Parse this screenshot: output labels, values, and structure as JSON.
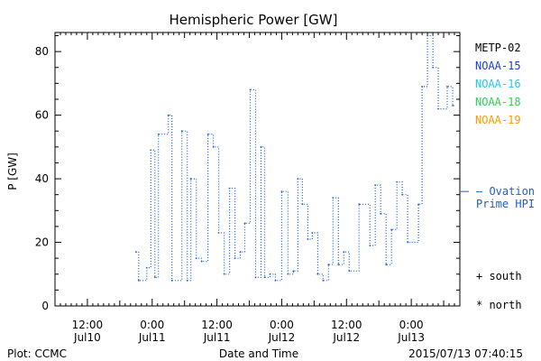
{
  "chart_data": {
    "type": "line",
    "title": "Hemispheric Power [GW]",
    "xlabel": "Date and Time",
    "ylabel": "P [GW]",
    "ylim": [
      0,
      86
    ],
    "yticks": [
      0,
      20,
      40,
      60,
      80
    ],
    "xlim": [
      "2015-07-10 06:00",
      "2015-07-13 09:00"
    ],
    "xticks": [
      {
        "time": "2015-07-10 12:00",
        "line1": "12:00",
        "line2": "Jul10"
      },
      {
        "time": "2015-07-11 00:00",
        "line1": "0:00",
        "line2": "Jul11"
      },
      {
        "time": "2015-07-11 12:00",
        "line1": "12:00",
        "line2": "Jul11"
      },
      {
        "time": "2015-07-12 00:00",
        "line1": "0:00",
        "line2": "Jul12"
      },
      {
        "time": "2015-07-12 12:00",
        "line1": "12:00",
        "line2": "Jul12"
      },
      {
        "time": "2015-07-13 00:00",
        "line1": "0:00",
        "line2": "Jul13"
      }
    ],
    "legend": {
      "placement": "right",
      "entries": [
        {
          "name": "METP-02",
          "color": "#000000"
        },
        {
          "name": "NOAA-15",
          "color": "#1a3fd1"
        },
        {
          "name": "NOAA-16",
          "color": "#22c8e6"
        },
        {
          "name": "NOAA-18",
          "color": "#33cc55"
        },
        {
          "name": "NOAA-19",
          "color": "#ff9900"
        }
      ]
    },
    "ovation": {
      "name_line1": "— Ovation",
      "name_line2": "Prime HPI",
      "color": "#1a5fd0",
      "value": 36
    },
    "markers": [
      {
        "symbol": "+",
        "label": "south"
      },
      {
        "symbol": "*",
        "label": "north"
      }
    ],
    "series": [
      {
        "style": "dotted-step",
        "color": "#1a5fd0",
        "points": [
          [
            "2015-07-10 21:00",
            17
          ],
          [
            "2015-07-10 21:30",
            8
          ],
          [
            "2015-07-10 23:00",
            12
          ],
          [
            "2015-07-10 23:45",
            49
          ],
          [
            "2015-07-11 00:30",
            9
          ],
          [
            "2015-07-11 01:10",
            54
          ],
          [
            "2015-07-11 03:00",
            60
          ],
          [
            "2015-07-11 03:40",
            8
          ],
          [
            "2015-07-11 05:30",
            55
          ],
          [
            "2015-07-11 06:30",
            8
          ],
          [
            "2015-07-11 07:10",
            40
          ],
          [
            "2015-07-11 08:10",
            15
          ],
          [
            "2015-07-11 09:10",
            14
          ],
          [
            "2015-07-11 10:20",
            54
          ],
          [
            "2015-07-11 11:20",
            50
          ],
          [
            "2015-07-11 12:20",
            23
          ],
          [
            "2015-07-11 13:20",
            10
          ],
          [
            "2015-07-11 14:20",
            37
          ],
          [
            "2015-07-11 15:20",
            15
          ],
          [
            "2015-07-11 16:20",
            17
          ],
          [
            "2015-07-11 17:10",
            26
          ],
          [
            "2015-07-11 18:10",
            68
          ],
          [
            "2015-07-11 19:10",
            9
          ],
          [
            "2015-07-11 20:10",
            50
          ],
          [
            "2015-07-11 20:50",
            9
          ],
          [
            "2015-07-11 21:50",
            10
          ],
          [
            "2015-07-11 22:50",
            8
          ],
          [
            "2015-07-12 00:00",
            36
          ],
          [
            "2015-07-12 01:10",
            10
          ],
          [
            "2015-07-12 02:10",
            11
          ],
          [
            "2015-07-12 03:00",
            40
          ],
          [
            "2015-07-12 03:50",
            32
          ],
          [
            "2015-07-12 04:50",
            21
          ],
          [
            "2015-07-12 05:40",
            23
          ],
          [
            "2015-07-12 06:40",
            10
          ],
          [
            "2015-07-12 07:40",
            8
          ],
          [
            "2015-07-12 08:40",
            13
          ],
          [
            "2015-07-12 09:30",
            34
          ],
          [
            "2015-07-12 10:30",
            13
          ],
          [
            "2015-07-12 11:30",
            17
          ],
          [
            "2015-07-12 12:30",
            11
          ],
          [
            "2015-07-12 14:20",
            32
          ],
          [
            "2015-07-12 16:20",
            19
          ],
          [
            "2015-07-12 17:20",
            38
          ],
          [
            "2015-07-12 18:20",
            29
          ],
          [
            "2015-07-12 19:20",
            13
          ],
          [
            "2015-07-12 20:20",
            24
          ],
          [
            "2015-07-12 21:20",
            39
          ],
          [
            "2015-07-12 22:20",
            35
          ],
          [
            "2015-07-12 23:20",
            20
          ],
          [
            "2015-07-13 01:20",
            32
          ],
          [
            "2015-07-13 02:00",
            69
          ],
          [
            "2015-07-13 03:00",
            85
          ],
          [
            "2015-07-13 04:00",
            75
          ],
          [
            "2015-07-13 05:00",
            62
          ],
          [
            "2015-07-13 06:40",
            69
          ],
          [
            "2015-07-13 07:40",
            63
          ]
        ]
      }
    ]
  },
  "footer": {
    "plot_credit": "Plot: CCMC",
    "timestamp": "2015/07/13 07:40:15"
  },
  "colors": {
    "axis": "#000000",
    "series": "#1a5fd0"
  }
}
